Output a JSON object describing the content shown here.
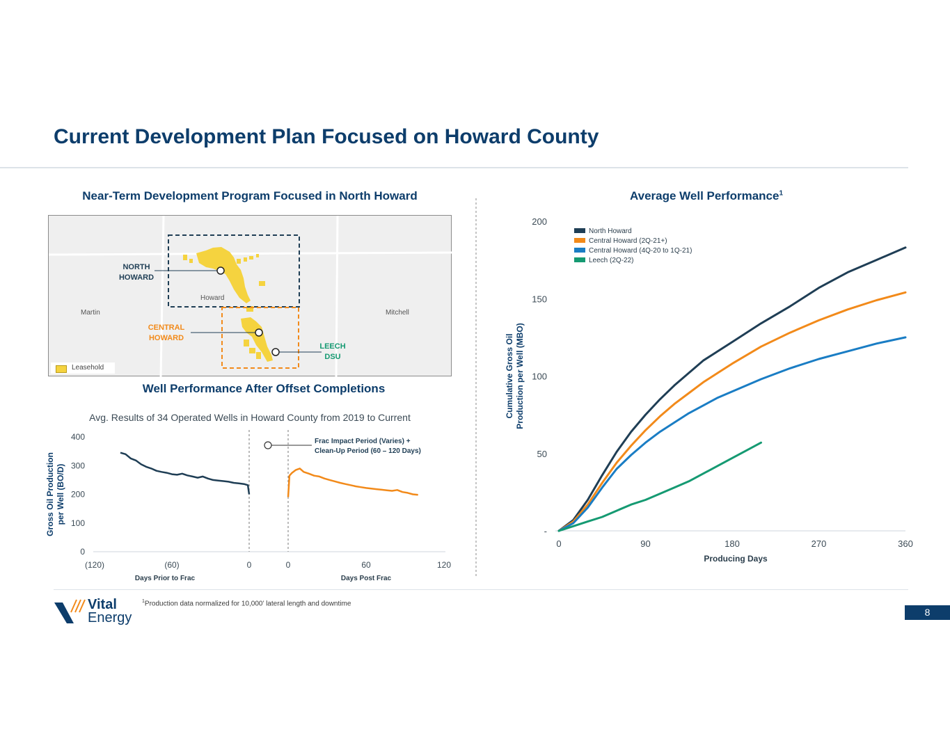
{
  "page": {
    "title": "Current Development Plan Focused on Howard County",
    "page_number": "8",
    "footnote_marker": "1",
    "footnote": "Production data normalized for 10,000’ lateral length and downtime",
    "logo": {
      "line1": "Vital",
      "line2": "Energy"
    }
  },
  "colors": {
    "navy": "#0d3d6b",
    "north": "#1f3e55",
    "central_new": "#f28a1a",
    "central_old": "#1a7dc4",
    "leech": "#159a72",
    "leasehold": "#f5d33f"
  },
  "map": {
    "title": "Near-Term Development Program Focused in North Howard",
    "county_labels": {
      "martin": "Martin",
      "howard": "Howard",
      "mitchell": "Mitchell"
    },
    "regions": {
      "north": {
        "line1": "NORTH",
        "line2": "HOWARD"
      },
      "central": {
        "line1": "CENTRAL",
        "line2": "HOWARD"
      },
      "leech": {
        "line1": "LEECH",
        "line2": "DSU"
      }
    },
    "legend": "Leasehold"
  },
  "chart_data": [
    {
      "id": "well-performance-after-offset",
      "type": "line",
      "title": "Well Performance After Offset Completions",
      "subtitle": "Avg. Results of 34 Operated Wells in Howard County from 2019 to Current",
      "ylabel_line1": "Gross Oil Production",
      "ylabel_line2": "per Well (BO/D)",
      "ylim": [
        0,
        400
      ],
      "yticks": [
        0,
        100,
        200,
        300,
        400
      ],
      "xlabel_left": "Days Prior to Frac",
      "xlabel_right": "Days Post Frac",
      "xticks_left": [
        {
          "value": -120,
          "label": "(120)"
        },
        {
          "value": -60,
          "label": "(60)"
        },
        {
          "value": 0,
          "label": "0"
        }
      ],
      "xticks_right": [
        {
          "value": 0,
          "label": "0"
        },
        {
          "value": 60,
          "label": "60"
        },
        {
          "value": 120,
          "label": "120"
        }
      ],
      "annotation": {
        "line1": "Frac Impact Period (Varies) +",
        "line2": "Clean-Up Period (60 – 120 Days)"
      },
      "series": [
        {
          "name": "Prior to Frac",
          "color": "#1f3e55",
          "x": [
            -100,
            -96,
            -92,
            -88,
            -84,
            -80,
            -76,
            -72,
            -68,
            -64,
            -60,
            -56,
            -52,
            -48,
            -44,
            -40,
            -36,
            -32,
            -28,
            -24,
            -20,
            -16,
            -12,
            -8,
            -4,
            -1,
            0
          ],
          "y": [
            345,
            340,
            325,
            318,
            305,
            296,
            290,
            282,
            278,
            275,
            270,
            268,
            272,
            266,
            262,
            258,
            262,
            255,
            250,
            248,
            246,
            244,
            240,
            238,
            236,
            232,
            200
          ]
        },
        {
          "name": "Post Frac",
          "color": "#f28a1a",
          "x": [
            0,
            1,
            3,
            6,
            9,
            12,
            16,
            20,
            24,
            28,
            32,
            36,
            40,
            44,
            48,
            52,
            56,
            60,
            64,
            68,
            72,
            76,
            80,
            84,
            88,
            92,
            96,
            100
          ],
          "y": [
            190,
            265,
            275,
            285,
            290,
            278,
            272,
            265,
            262,
            255,
            250,
            245,
            240,
            236,
            232,
            228,
            225,
            222,
            220,
            218,
            216,
            214,
            212,
            215,
            208,
            205,
            200,
            198
          ]
        }
      ]
    },
    {
      "id": "average-well-performance",
      "type": "line",
      "title": "Average Well Performance",
      "title_sup": "1",
      "ylabel_line1": "Cumulative Gross Oil",
      "ylabel_line2": "Production per Well (MBO)",
      "xlabel": "Producing Days",
      "xlim": [
        0,
        360
      ],
      "ylim": [
        0,
        200
      ],
      "xticks": [
        0,
        90,
        180,
        270,
        360
      ],
      "yticks": [
        {
          "value": 0,
          "label": "-"
        },
        {
          "value": 50,
          "label": "50"
        },
        {
          "value": 100,
          "label": "100"
        },
        {
          "value": 150,
          "label": "150"
        },
        {
          "value": 200,
          "label": "200"
        }
      ],
      "legend": "top-left",
      "series": [
        {
          "name": "North Howard",
          "color": "#1f3e55",
          "x": [
            0,
            15,
            30,
            45,
            60,
            75,
            90,
            105,
            120,
            135,
            150,
            165,
            180,
            210,
            240,
            270,
            300,
            330,
            360
          ],
          "y": [
            0,
            7,
            20,
            36,
            51,
            64,
            75,
            85,
            94,
            102,
            110,
            116,
            122,
            134,
            145,
            157,
            167,
            175,
            183
          ]
        },
        {
          "name": "Central Howard (2Q-21+)",
          "color": "#f28a1a",
          "x": [
            0,
            15,
            30,
            45,
            60,
            75,
            90,
            105,
            120,
            135,
            150,
            165,
            180,
            210,
            240,
            270,
            300,
            330,
            360
          ],
          "y": [
            0,
            6,
            17,
            31,
            44,
            55,
            65,
            74,
            82,
            89,
            96,
            102,
            108,
            119,
            128,
            136,
            143,
            149,
            154
          ]
        },
        {
          "name": "Central Howard (4Q-20 to 1Q-21)",
          "color": "#1a7dc4",
          "x": [
            0,
            15,
            30,
            45,
            60,
            75,
            90,
            105,
            120,
            135,
            150,
            165,
            180,
            210,
            240,
            270,
            300,
            330,
            360
          ],
          "y": [
            0,
            5,
            15,
            28,
            40,
            49,
            57,
            64,
            70,
            76,
            81,
            86,
            90,
            98,
            105,
            111,
            116,
            121,
            125
          ]
        },
        {
          "name": "Leech (2Q-22)",
          "color": "#159a72",
          "x": [
            0,
            15,
            30,
            45,
            60,
            75,
            90,
            105,
            120,
            135,
            150,
            165,
            180,
            195,
            210
          ],
          "y": [
            0,
            3,
            6,
            9,
            13,
            17,
            20,
            24,
            28,
            32,
            37,
            42,
            47,
            52,
            57
          ]
        }
      ]
    }
  ]
}
